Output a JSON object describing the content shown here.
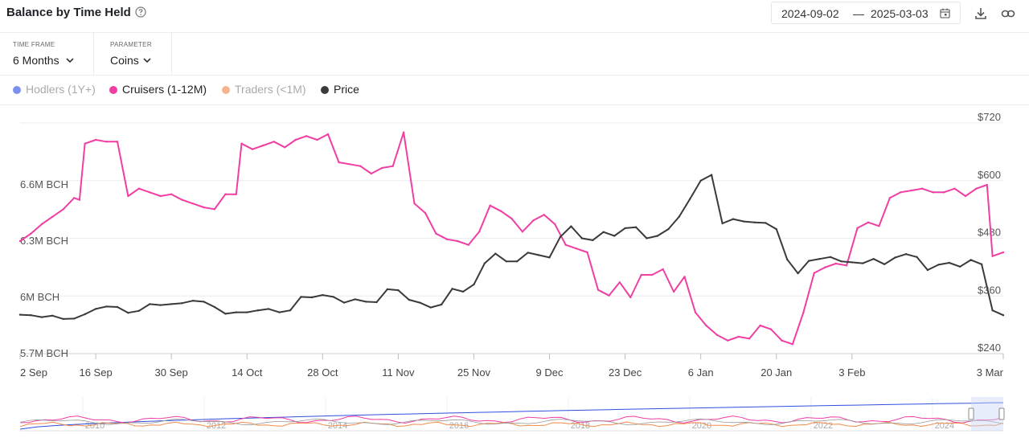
{
  "header": {
    "title": "Balance by Time Held",
    "date_start": "2024-09-02",
    "date_separator": "—",
    "date_end": "2025-03-03"
  },
  "controls": {
    "time_frame": {
      "label": "TIME FRAME",
      "value": "6 Months"
    },
    "parameter": {
      "label": "PARAMETER",
      "value": "Coins"
    }
  },
  "legend": [
    {
      "name": "Hodlers (1Y+)",
      "color": "#7b8ff0",
      "active": false
    },
    {
      "name": "Cruisers (1-12M)",
      "color": "#f03ea3",
      "active": true
    },
    {
      "name": "Traders (<1M)",
      "color": "#f8b48e",
      "active": false
    },
    {
      "name": "Price",
      "color": "#3a3a3a",
      "active": true
    }
  ],
  "chart_data": {
    "type": "line",
    "x_start": "2024-09-02",
    "x_end": "2025-03-03",
    "x_ticks": [
      "2 Sep",
      "16 Sep",
      "30 Sep",
      "14 Oct",
      "28 Oct",
      "11 Nov",
      "25 Nov",
      "9 Dec",
      "23 Dec",
      "6 Jan",
      "20 Jan",
      "3 Feb",
      "3 Mar"
    ],
    "y_left": {
      "ticks": [
        "5.7M BCH",
        "6M BCH",
        "6.3M BCH",
        "6.6M BCH"
      ],
      "range": [
        5.7,
        6.93
      ],
      "unit": "M BCH"
    },
    "y_right": {
      "ticks": [
        "$240",
        "$360",
        "$480",
        "$600",
        "$720"
      ],
      "range": [
        240,
        720
      ],
      "unit": "$"
    },
    "series": [
      {
        "name": "Cruisers (1-12M)",
        "axis": "left",
        "color": "#f03ea3",
        "points": [
          [
            "2024-09-02",
            6.3
          ],
          [
            "2024-09-04",
            6.34
          ],
          [
            "2024-09-06",
            6.39
          ],
          [
            "2024-09-08",
            6.43
          ],
          [
            "2024-09-10",
            6.47
          ],
          [
            "2024-09-12",
            6.53
          ],
          [
            "2024-09-13",
            6.52
          ],
          [
            "2024-09-14",
            6.82
          ],
          [
            "2024-09-16",
            6.84
          ],
          [
            "2024-09-18",
            6.83
          ],
          [
            "2024-09-20",
            6.83
          ],
          [
            "2024-09-22",
            6.54
          ],
          [
            "2024-09-24",
            6.58
          ],
          [
            "2024-09-26",
            6.56
          ],
          [
            "2024-09-28",
            6.54
          ],
          [
            "2024-09-30",
            6.55
          ],
          [
            "2024-10-02",
            6.52
          ],
          [
            "2024-10-04",
            6.5
          ],
          [
            "2024-10-06",
            6.48
          ],
          [
            "2024-10-08",
            6.47
          ],
          [
            "2024-10-10",
            6.55
          ],
          [
            "2024-10-12",
            6.55
          ],
          [
            "2024-10-13",
            6.82
          ],
          [
            "2024-10-15",
            6.79
          ],
          [
            "2024-10-17",
            6.81
          ],
          [
            "2024-10-19",
            6.83
          ],
          [
            "2024-10-21",
            6.8
          ],
          [
            "2024-10-23",
            6.84
          ],
          [
            "2024-10-25",
            6.86
          ],
          [
            "2024-10-27",
            6.84
          ],
          [
            "2024-10-29",
            6.87
          ],
          [
            "2024-10-31",
            6.72
          ],
          [
            "2024-11-02",
            6.71
          ],
          [
            "2024-11-04",
            6.7
          ],
          [
            "2024-11-06",
            6.66
          ],
          [
            "2024-11-08",
            6.69
          ],
          [
            "2024-11-10",
            6.7
          ],
          [
            "2024-11-12",
            6.88
          ],
          [
            "2024-11-14",
            6.5
          ],
          [
            "2024-11-16",
            6.45
          ],
          [
            "2024-11-18",
            6.34
          ],
          [
            "2024-11-20",
            6.31
          ],
          [
            "2024-11-22",
            6.3
          ],
          [
            "2024-11-24",
            6.28
          ],
          [
            "2024-11-26",
            6.35
          ],
          [
            "2024-11-28",
            6.49
          ],
          [
            "2024-11-30",
            6.46
          ],
          [
            "2024-12-02",
            6.42
          ],
          [
            "2024-12-04",
            6.35
          ],
          [
            "2024-12-06",
            6.41
          ],
          [
            "2024-12-08",
            6.44
          ],
          [
            "2024-12-10",
            6.39
          ],
          [
            "2024-12-12",
            6.28
          ],
          [
            "2024-12-14",
            6.26
          ],
          [
            "2024-12-16",
            6.24
          ],
          [
            "2024-12-18",
            6.04
          ],
          [
            "2024-12-20",
            6.01
          ],
          [
            "2024-12-22",
            6.08
          ],
          [
            "2024-12-24",
            6.0
          ],
          [
            "2024-12-26",
            6.12
          ],
          [
            "2024-12-28",
            6.12
          ],
          [
            "2024-12-30",
            6.15
          ],
          [
            "2025-01-01",
            6.03
          ],
          [
            "2025-01-03",
            6.11
          ],
          [
            "2025-01-05",
            5.92
          ],
          [
            "2025-01-07",
            5.85
          ],
          [
            "2025-01-09",
            5.8
          ],
          [
            "2025-01-11",
            5.77
          ],
          [
            "2025-01-13",
            5.79
          ],
          [
            "2025-01-15",
            5.78
          ],
          [
            "2025-01-17",
            5.85
          ],
          [
            "2025-01-19",
            5.83
          ],
          [
            "2025-01-21",
            5.77
          ],
          [
            "2025-01-23",
            5.75
          ],
          [
            "2025-01-25",
            5.92
          ],
          [
            "2025-01-27",
            6.13
          ],
          [
            "2025-01-29",
            6.16
          ],
          [
            "2025-01-31",
            6.18
          ],
          [
            "2025-02-02",
            6.17
          ],
          [
            "2025-02-04",
            6.37
          ],
          [
            "2025-02-06",
            6.4
          ],
          [
            "2025-02-08",
            6.38
          ],
          [
            "2025-02-10",
            6.53
          ],
          [
            "2025-02-12",
            6.56
          ],
          [
            "2025-02-14",
            6.57
          ],
          [
            "2025-02-16",
            6.58
          ],
          [
            "2025-02-18",
            6.56
          ],
          [
            "2025-02-20",
            6.56
          ],
          [
            "2025-02-22",
            6.58
          ],
          [
            "2025-02-24",
            6.54
          ],
          [
            "2025-02-26",
            6.58
          ],
          [
            "2025-02-28",
            6.6
          ],
          [
            "2025-03-01",
            6.22
          ],
          [
            "2025-03-03",
            6.24
          ]
        ]
      },
      {
        "name": "Price",
        "axis": "right",
        "color": "#3a3a3a",
        "points": [
          [
            "2024-09-02",
            321
          ],
          [
            "2024-09-04",
            320
          ],
          [
            "2024-09-06",
            316
          ],
          [
            "2024-09-08",
            319
          ],
          [
            "2024-09-10",
            312
          ],
          [
            "2024-09-12",
            313
          ],
          [
            "2024-09-14",
            322
          ],
          [
            "2024-09-16",
            333
          ],
          [
            "2024-09-18",
            338
          ],
          [
            "2024-09-20",
            337
          ],
          [
            "2024-09-22",
            325
          ],
          [
            "2024-09-24",
            329
          ],
          [
            "2024-09-26",
            343
          ],
          [
            "2024-09-28",
            341
          ],
          [
            "2024-09-30",
            343
          ],
          [
            "2024-10-02",
            345
          ],
          [
            "2024-10-04",
            350
          ],
          [
            "2024-10-06",
            348
          ],
          [
            "2024-10-08",
            337
          ],
          [
            "2024-10-10",
            323
          ],
          [
            "2024-10-12",
            326
          ],
          [
            "2024-10-14",
            326
          ],
          [
            "2024-10-16",
            330
          ],
          [
            "2024-10-18",
            333
          ],
          [
            "2024-10-20",
            326
          ],
          [
            "2024-10-22",
            330
          ],
          [
            "2024-10-24",
            358
          ],
          [
            "2024-10-26",
            357
          ],
          [
            "2024-10-28",
            362
          ],
          [
            "2024-10-30",
            358
          ],
          [
            "2024-11-01",
            346
          ],
          [
            "2024-11-03",
            353
          ],
          [
            "2024-11-05",
            348
          ],
          [
            "2024-11-07",
            347
          ],
          [
            "2024-11-09",
            374
          ],
          [
            "2024-11-11",
            372
          ],
          [
            "2024-11-13",
            352
          ],
          [
            "2024-11-15",
            346
          ],
          [
            "2024-11-17",
            336
          ],
          [
            "2024-11-19",
            342
          ],
          [
            "2024-11-21",
            375
          ],
          [
            "2024-11-23",
            369
          ],
          [
            "2024-11-25",
            384
          ],
          [
            "2024-11-27",
            428
          ],
          [
            "2024-11-29",
            448
          ],
          [
            "2024-12-01",
            432
          ],
          [
            "2024-12-03",
            432
          ],
          [
            "2024-12-05",
            450
          ],
          [
            "2024-12-07",
            445
          ],
          [
            "2024-12-09",
            440
          ],
          [
            "2024-12-11",
            483
          ],
          [
            "2024-12-13",
            505
          ],
          [
            "2024-12-15",
            480
          ],
          [
            "2024-12-17",
            476
          ],
          [
            "2024-12-19",
            493
          ],
          [
            "2024-12-21",
            485
          ],
          [
            "2024-12-23",
            501
          ],
          [
            "2024-12-25",
            503
          ],
          [
            "2024-12-27",
            480
          ],
          [
            "2024-12-29",
            485
          ],
          [
            "2024-12-31",
            499
          ],
          [
            "2025-01-02",
            525
          ],
          [
            "2025-01-04",
            562
          ],
          [
            "2025-01-06",
            600
          ],
          [
            "2025-01-08",
            612
          ],
          [
            "2025-01-10",
            511
          ],
          [
            "2025-01-12",
            520
          ],
          [
            "2025-01-14",
            515
          ],
          [
            "2025-01-16",
            513
          ],
          [
            "2025-01-18",
            512
          ],
          [
            "2025-01-20",
            499
          ],
          [
            "2025-01-22",
            436
          ],
          [
            "2025-01-24",
            407
          ],
          [
            "2025-01-26",
            433
          ],
          [
            "2025-01-28",
            437
          ],
          [
            "2025-01-30",
            441
          ],
          [
            "2025-02-01",
            432
          ],
          [
            "2025-02-03",
            430
          ],
          [
            "2025-02-05",
            428
          ],
          [
            "2025-02-07",
            437
          ],
          [
            "2025-02-09",
            426
          ],
          [
            "2025-02-11",
            440
          ],
          [
            "2025-02-13",
            447
          ],
          [
            "2025-02-15",
            441
          ],
          [
            "2025-02-17",
            414
          ],
          [
            "2025-02-19",
            425
          ],
          [
            "2025-02-21",
            429
          ],
          [
            "2025-02-23",
            421
          ],
          [
            "2025-02-25",
            435
          ],
          [
            "2025-02-27",
            426
          ],
          [
            "2025-03-01",
            330
          ],
          [
            "2025-03-03",
            320
          ]
        ]
      }
    ],
    "navigator": {
      "x_ticks": [
        "2010",
        "2012",
        "2014",
        "2016",
        "2018",
        "2020",
        "2022",
        "2024"
      ]
    },
    "grid": true,
    "legend_position": "top-left"
  }
}
